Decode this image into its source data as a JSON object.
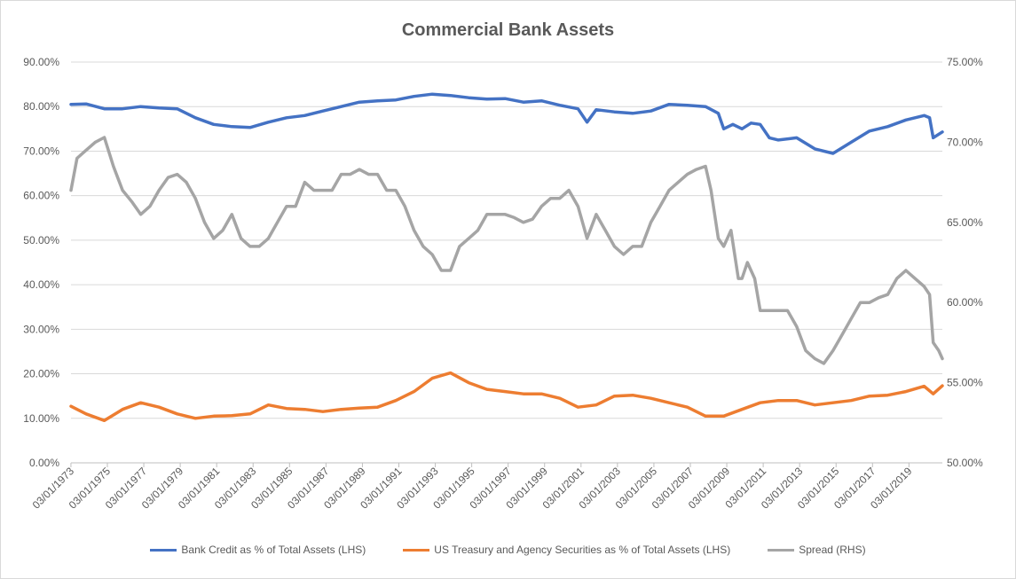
{
  "chart_data": {
    "type": "line",
    "title": "Commercial Bank Assets",
    "x_tick_labels": [
      "03/01/1973",
      "03/01/1975",
      "03/01/1977",
      "03/01/1979",
      "03/01/1981",
      "03/01/1983",
      "03/01/1985",
      "03/01/1987",
      "03/01/1989",
      "03/01/1991",
      "03/01/1993",
      "03/01/1995",
      "03/01/1997",
      "03/01/1999",
      "03/01/2001",
      "03/01/2003",
      "03/01/2005",
      "03/01/2007",
      "03/01/2009",
      "03/01/2011",
      "03/01/2013",
      "03/01/2015",
      "03/01/2017",
      "03/01/2019"
    ],
    "xlim": [
      1973.17,
      2021.0
    ],
    "y_left": {
      "ylim": [
        0,
        90
      ],
      "tick_labels": [
        "0.00%",
        "10.00%",
        "20.00%",
        "30.00%",
        "40.00%",
        "50.00%",
        "60.00%",
        "70.00%",
        "80.00%",
        "90.00%"
      ]
    },
    "y_right": {
      "ylim": [
        50,
        75
      ],
      "tick_labels": [
        "50.00%",
        "55.00%",
        "60.00%",
        "65.00%",
        "70.00%",
        "75.00%"
      ]
    },
    "grid": true,
    "legend_position": "bottom",
    "series": [
      {
        "name": "Bank Credit as % of Total Assets (LHS)",
        "axis": "left",
        "color": "#4472c4",
        "points": [
          [
            1973.17,
            80.5
          ],
          [
            1974,
            80.6
          ],
          [
            1975,
            79.5
          ],
          [
            1976,
            79.5
          ],
          [
            1977,
            80.0
          ],
          [
            1978,
            79.7
          ],
          [
            1979,
            79.5
          ],
          [
            1980,
            77.5
          ],
          [
            1981,
            76.0
          ],
          [
            1982,
            75.5
          ],
          [
            1983,
            75.3
          ],
          [
            1984,
            76.5
          ],
          [
            1985,
            77.5
          ],
          [
            1986,
            78.0
          ],
          [
            1987,
            79.0
          ],
          [
            1988,
            80.0
          ],
          [
            1989,
            81.0
          ],
          [
            1990,
            81.3
          ],
          [
            1991,
            81.5
          ],
          [
            1992,
            82.3
          ],
          [
            1993,
            82.8
          ],
          [
            1994,
            82.5
          ],
          [
            1995,
            82.0
          ],
          [
            1996,
            81.7
          ],
          [
            1997,
            81.8
          ],
          [
            1998,
            81.0
          ],
          [
            1999,
            81.3
          ],
          [
            2000,
            80.3
          ],
          [
            2001,
            79.5
          ],
          [
            2001.5,
            76.5
          ],
          [
            2002,
            79.3
          ],
          [
            2003,
            78.8
          ],
          [
            2004,
            78.5
          ],
          [
            2005,
            79.0
          ],
          [
            2006,
            80.5
          ],
          [
            2007,
            80.3
          ],
          [
            2008,
            80.0
          ],
          [
            2008.7,
            78.5
          ],
          [
            2009,
            75.0
          ],
          [
            2009.5,
            76.0
          ],
          [
            2010,
            75.0
          ],
          [
            2010.5,
            76.3
          ],
          [
            2011,
            76.0
          ],
          [
            2011.5,
            73.0
          ],
          [
            2012,
            72.5
          ],
          [
            2013,
            73.0
          ],
          [
            2014,
            70.5
          ],
          [
            2015,
            69.5
          ],
          [
            2016,
            72.0
          ],
          [
            2017,
            74.5
          ],
          [
            2018,
            75.5
          ],
          [
            2019,
            77.0
          ],
          [
            2020,
            78.0
          ],
          [
            2020.3,
            77.5
          ],
          [
            2020.5,
            73.0
          ],
          [
            2021.0,
            74.3
          ]
        ]
      },
      {
        "name": "US Treasury and Agency Securities as % of Total Assets (LHS)",
        "axis": "left",
        "color": "#ed7d31",
        "points": [
          [
            1973.17,
            12.7
          ],
          [
            1974,
            11.0
          ],
          [
            1975,
            9.5
          ],
          [
            1976,
            12.0
          ],
          [
            1977,
            13.5
          ],
          [
            1978,
            12.5
          ],
          [
            1979,
            11.0
          ],
          [
            1980,
            10.0
          ],
          [
            1981,
            10.5
          ],
          [
            1982,
            10.6
          ],
          [
            1983,
            11.0
          ],
          [
            1984,
            13.0
          ],
          [
            1985,
            12.2
          ],
          [
            1986,
            12.0
          ],
          [
            1987,
            11.5
          ],
          [
            1988,
            12.0
          ],
          [
            1989,
            12.3
          ],
          [
            1990,
            12.5
          ],
          [
            1991,
            14.0
          ],
          [
            1992,
            16.0
          ],
          [
            1993,
            19.0
          ],
          [
            1994,
            20.2
          ],
          [
            1995,
            18.0
          ],
          [
            1996,
            16.5
          ],
          [
            1997,
            16.0
          ],
          [
            1998,
            15.5
          ],
          [
            1999,
            15.5
          ],
          [
            2000,
            14.5
          ],
          [
            2001,
            12.5
          ],
          [
            2002,
            13.0
          ],
          [
            2003,
            15.0
          ],
          [
            2004,
            15.2
          ],
          [
            2005,
            14.5
          ],
          [
            2006,
            13.5
          ],
          [
            2007,
            12.5
          ],
          [
            2008,
            10.5
          ],
          [
            2009,
            10.5
          ],
          [
            2010,
            12.0
          ],
          [
            2011,
            13.5
          ],
          [
            2012,
            14.0
          ],
          [
            2013,
            14.0
          ],
          [
            2014,
            13.0
          ],
          [
            2015,
            13.5
          ],
          [
            2016,
            14.0
          ],
          [
            2017,
            15.0
          ],
          [
            2018,
            15.2
          ],
          [
            2019,
            16.0
          ],
          [
            2020,
            17.2
          ],
          [
            2020.5,
            15.5
          ],
          [
            2021.0,
            17.3
          ]
        ]
      },
      {
        "name": "Spread (RHS)",
        "axis": "right",
        "color": "#a5a5a5",
        "points": [
          [
            1973.17,
            67.0
          ],
          [
            1973.5,
            69.0
          ],
          [
            1974,
            69.5
          ],
          [
            1974.5,
            70.0
          ],
          [
            1975,
            70.3
          ],
          [
            1975.5,
            68.5
          ],
          [
            1976,
            67.0
          ],
          [
            1976.5,
            66.3
          ],
          [
            1977,
            65.5
          ],
          [
            1977.5,
            66.0
          ],
          [
            1978,
            67.0
          ],
          [
            1978.5,
            67.8
          ],
          [
            1979,
            68.0
          ],
          [
            1979.5,
            67.5
          ],
          [
            1980,
            66.5
          ],
          [
            1980.5,
            65.0
          ],
          [
            1981,
            64.0
          ],
          [
            1981.5,
            64.5
          ],
          [
            1982,
            65.5
          ],
          [
            1982.5,
            64.0
          ],
          [
            1983,
            63.5
          ],
          [
            1983.5,
            63.5
          ],
          [
            1984,
            64.0
          ],
          [
            1984.5,
            65.0
          ],
          [
            1985,
            66.0
          ],
          [
            1985.5,
            66.0
          ],
          [
            1986,
            67.5
          ],
          [
            1986.5,
            67.0
          ],
          [
            1987,
            67.0
          ],
          [
            1987.5,
            67.0
          ],
          [
            1988,
            68.0
          ],
          [
            1988.5,
            68.0
          ],
          [
            1989,
            68.3
          ],
          [
            1989.5,
            68.0
          ],
          [
            1990,
            68.0
          ],
          [
            1990.5,
            67.0
          ],
          [
            1991,
            67.0
          ],
          [
            1991.5,
            66.0
          ],
          [
            1992,
            64.5
          ],
          [
            1992.5,
            63.5
          ],
          [
            1993,
            63.0
          ],
          [
            1993.5,
            62.0
          ],
          [
            1994,
            62.0
          ],
          [
            1994.5,
            63.5
          ],
          [
            1995,
            64.0
          ],
          [
            1995.5,
            64.5
          ],
          [
            1996,
            65.5
          ],
          [
            1996.5,
            65.5
          ],
          [
            1997,
            65.5
          ],
          [
            1997.5,
            65.3
          ],
          [
            1998,
            65.0
          ],
          [
            1998.5,
            65.2
          ],
          [
            1999,
            66.0
          ],
          [
            1999.5,
            66.5
          ],
          [
            2000,
            66.5
          ],
          [
            2000.5,
            67.0
          ],
          [
            2001,
            66.0
          ],
          [
            2001.5,
            64.0
          ],
          [
            2002,
            65.5
          ],
          [
            2002.5,
            64.5
          ],
          [
            2003,
            63.5
          ],
          [
            2003.5,
            63.0
          ],
          [
            2004,
            63.5
          ],
          [
            2004.5,
            63.5
          ],
          [
            2005,
            65.0
          ],
          [
            2005.5,
            66.0
          ],
          [
            2006,
            67.0
          ],
          [
            2006.5,
            67.5
          ],
          [
            2007,
            68.0
          ],
          [
            2007.5,
            68.3
          ],
          [
            2008,
            68.5
          ],
          [
            2008.3,
            67.0
          ],
          [
            2008.7,
            64.0
          ],
          [
            2009,
            63.5
          ],
          [
            2009.4,
            64.5
          ],
          [
            2009.8,
            61.5
          ],
          [
            2010,
            61.5
          ],
          [
            2010.3,
            62.5
          ],
          [
            2010.7,
            61.5
          ],
          [
            2011,
            59.5
          ],
          [
            2011.5,
            59.5
          ],
          [
            2012,
            59.5
          ],
          [
            2012.5,
            59.5
          ],
          [
            2013,
            58.5
          ],
          [
            2013.5,
            57.0
          ],
          [
            2014,
            56.5
          ],
          [
            2014.5,
            56.2
          ],
          [
            2015,
            57.0
          ],
          [
            2015.5,
            58.0
          ],
          [
            2016,
            59.0
          ],
          [
            2016.5,
            60.0
          ],
          [
            2017,
            60.0
          ],
          [
            2017.5,
            60.3
          ],
          [
            2018,
            60.5
          ],
          [
            2018.5,
            61.5
          ],
          [
            2019,
            62.0
          ],
          [
            2019.5,
            61.5
          ],
          [
            2020,
            61.0
          ],
          [
            2020.3,
            60.5
          ],
          [
            2020.5,
            57.5
          ],
          [
            2020.8,
            57.0
          ],
          [
            2021.0,
            56.5
          ]
        ]
      }
    ]
  }
}
